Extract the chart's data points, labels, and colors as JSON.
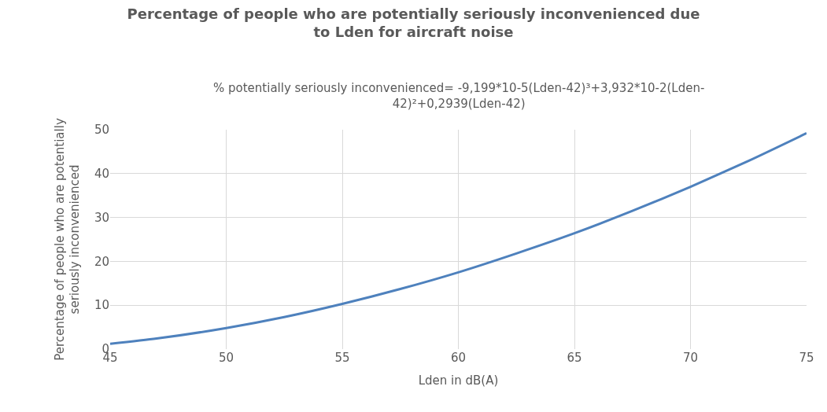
{
  "chart_data": {
    "type": "line",
    "title": "Percentage of people who are potentially seriously inconvenienced due to Lden for aircraft noise",
    "subtitle": "% potentially seriously inconvenienced= -9,199*10-5(Lden-42)³+3,932*10-2(Lden-42)²+0,2939(Lden-42)",
    "xlabel": "Lden in dB(A)",
    "ylabel": "Percentage of people who are potentially seriously inconvenienced",
    "x": [
      45,
      47,
      50,
      52.5,
      55,
      57.5,
      60,
      62.5,
      65,
      67.5,
      70,
      72.5,
      75
    ],
    "series": [
      {
        "color": "#4e81bd",
        "values": [
          1.2,
          2.4,
          4.8,
          7.3,
          10.3,
          13.7,
          17.5,
          21.8,
          26.4,
          31.5,
          37.0,
          42.9,
          49.2
        ]
      }
    ],
    "xlim": [
      45,
      75
    ],
    "xticks": [
      45,
      50,
      55,
      60,
      65,
      70,
      75
    ],
    "ylim": [
      0,
      50
    ],
    "yticks": [
      0,
      10,
      20,
      30,
      40,
      50
    ],
    "grid": true,
    "legend": false,
    "marker": "none",
    "line_style": "solid"
  }
}
